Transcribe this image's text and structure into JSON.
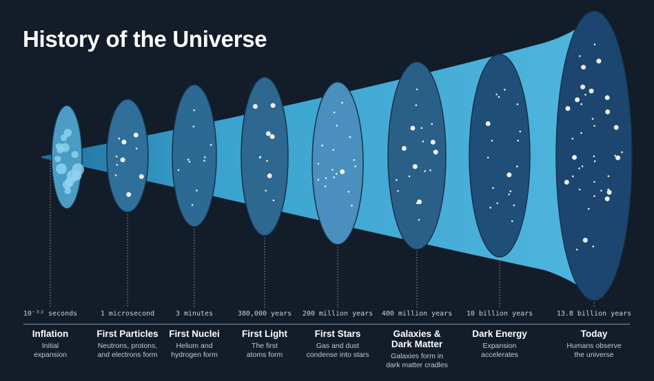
{
  "title": "History of the Universe",
  "colors": {
    "background": "#131c29",
    "funnel": "#3fa6d0",
    "epoch_fill": "#2a5f86",
    "text": "#ffffff"
  },
  "epochs": [
    {
      "time": "10⁻³² seconds",
      "name": "Inflation",
      "desc1": "Initial",
      "desc2": "expansion"
    },
    {
      "time": "1 microsecond",
      "name": "First Particles",
      "desc1": "Neutrons, protons,",
      "desc2": "and electrons form"
    },
    {
      "time": "3 minutes",
      "name": "First Nuclei",
      "desc1": "Helium and",
      "desc2": "hydrogen form"
    },
    {
      "time": "380,000 years",
      "name": "First Light",
      "desc1": "The first",
      "desc2": "atoms form"
    },
    {
      "time": "200 million years",
      "name": "First Stars",
      "desc1": "Gas and dust",
      "desc2": "condense into stars"
    },
    {
      "time": "400 million years",
      "name": "Galaxies & Dark Matter",
      "desc1": "Galaxies form in",
      "desc2": "dark matter cradles"
    },
    {
      "time": "10 billion years",
      "name": "Dark Energy",
      "desc1": "Expansion",
      "desc2": "accelerates"
    },
    {
      "time": "13.8 billion years",
      "name": "Today",
      "desc1": "Humans observe",
      "desc2": "the universe"
    }
  ]
}
